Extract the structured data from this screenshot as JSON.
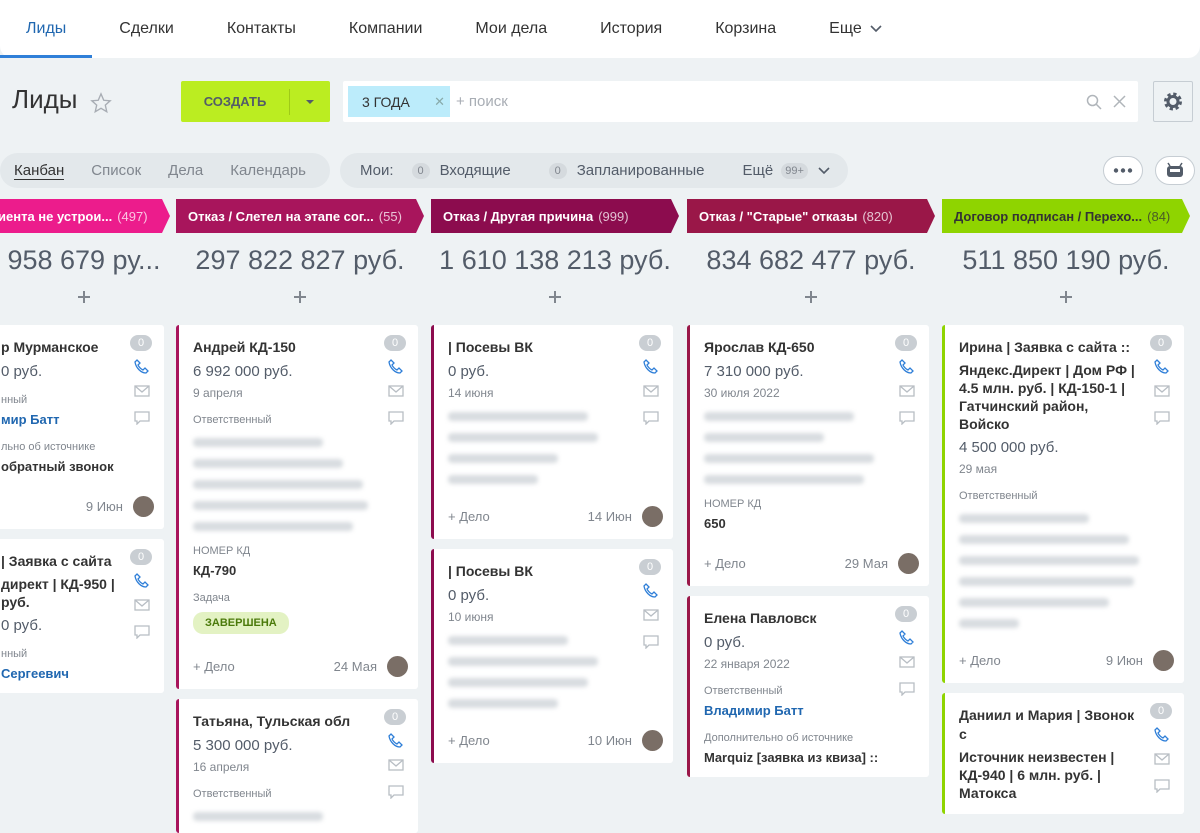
{
  "nav": {
    "tabs": [
      "Лиды",
      "Сделки",
      "Контакты",
      "Компании",
      "Мои дела",
      "История",
      "Корзина",
      "Еще"
    ]
  },
  "toolbar": {
    "title": "Лиды",
    "create": "СОЗДАТЬ",
    "filter": "3 ГОДА",
    "search": "+ поиск"
  },
  "views": {
    "tabs": [
      "Канбан",
      "Список",
      "Дела",
      "Календарь"
    ],
    "my": "Мои:",
    "counters": [
      {
        "count": "0",
        "label": "Входящие"
      },
      {
        "count": "0",
        "label": "Запланированные"
      }
    ],
    "more": "Ещё",
    "more_count": "99+"
  },
  "columns": [
    {
      "title": "иента не устрои...",
      "count": "(497)",
      "color": "#ec1c8c",
      "sum": "958 679 ру...",
      "cards": [
        {
          "title": "р Мурманское",
          "badge": "0",
          "price": "0 руб.",
          "items": [
            {
              "label": "нный",
              "value": "мир Батт"
            },
            {
              "label": "льно об источнике",
              "value": "обратный звонок"
            }
          ],
          "when": "9 Июн"
        },
        {
          "title": "| Заявка с сайта",
          "subtitle": "директ | КД-950 | руб.",
          "badge": "0",
          "price": "0 руб.",
          "items": [
            {
              "label": "нный",
              "value": "Сергеевич"
            }
          ]
        }
      ]
    },
    {
      "title": "Отказ / Слетел на этапе сог...",
      "count": "(55)",
      "color": "#a8155c",
      "sum": "297 822 827 руб.",
      "cards": [
        {
          "title": "Андрей КД-150",
          "badge": "0",
          "price": "6 992 000 руб.",
          "date": "9 апреля",
          "items": [
            {
              "label": "Ответственный"
            },
            {
              "label": "НОМЕР КД",
              "value": "КД-790"
            },
            {
              "label": "Задача",
              "status": "ЗАВЕРШЕНА"
            }
          ],
          "add": "+ Дело",
          "when": "24 Мая"
        },
        {
          "title": "Татьяна, Тульская обл",
          "badge": "0",
          "price": "5 300 000 руб.",
          "date": "16 апреля",
          "items": [
            {
              "label": "Ответственный"
            }
          ]
        }
      ]
    },
    {
      "title": "Отказ / Другая причина",
      "count": "(999)",
      "color": "#8c0c4e",
      "sum": "1 610 138 213 руб.",
      "cards": [
        {
          "title": "| Посевы ВК",
          "badge": "0",
          "price": "0 руб.",
          "date": "14 июня",
          "items": [],
          "add": "+ Дело",
          "when": "14 Июн"
        },
        {
          "title": "| Посевы ВК",
          "badge": "0",
          "price": "0 руб.",
          "date": "10 июня",
          "items": [],
          "add": "+ Дело",
          "when": "10 Июн"
        }
      ]
    },
    {
      "title": "Отказ / \"Старые\" отказы",
      "count": "(820)",
      "color": "#9a1748",
      "sum": "834 682 477 руб.",
      "cards": [
        {
          "title": "Ярослав КД-650",
          "badge": "0",
          "price": "7 310 000 руб.",
          "date": "30 июля 2022",
          "items": [
            {
              "label": "НОМЕР КД",
              "value": "650"
            }
          ],
          "add": "+ Дело",
          "when": "29 Мая"
        },
        {
          "title": "Елена Павловск",
          "badge": "0",
          "price": "0 руб.",
          "date": "22 января 2022",
          "items": [
            {
              "label": "Ответственный",
              "value": "Владимир Батт"
            },
            {
              "label": "Дополнительно об источнике",
              "value": "Marquiz [заявка из квиза] ::"
            }
          ]
        }
      ]
    },
    {
      "title": "Договор подписан / Перехо...",
      "count": "(84)",
      "color": "#8fd400",
      "sum": "511 850 190 руб.",
      "cards": [
        {
          "title": "Ирина | Заявка с сайта ::",
          "subtitle": "Яндекс.Директ | Дом РФ | 4.5 млн. руб. | КД-150-1 | Гатчинский район, Войско",
          "badge": "0",
          "price": "4 500 000 руб.",
          "date": "29 мая",
          "items": [
            {
              "label": "Ответственный"
            }
          ],
          "add": "+ Дело",
          "when": "9 Июн"
        },
        {
          "title": "Даниил и Мария | Звонок с",
          "subtitle": "Источник неизвестен | КД-940 | 6 млн. руб. | Матокса",
          "badge": "0"
        }
      ]
    }
  ]
}
